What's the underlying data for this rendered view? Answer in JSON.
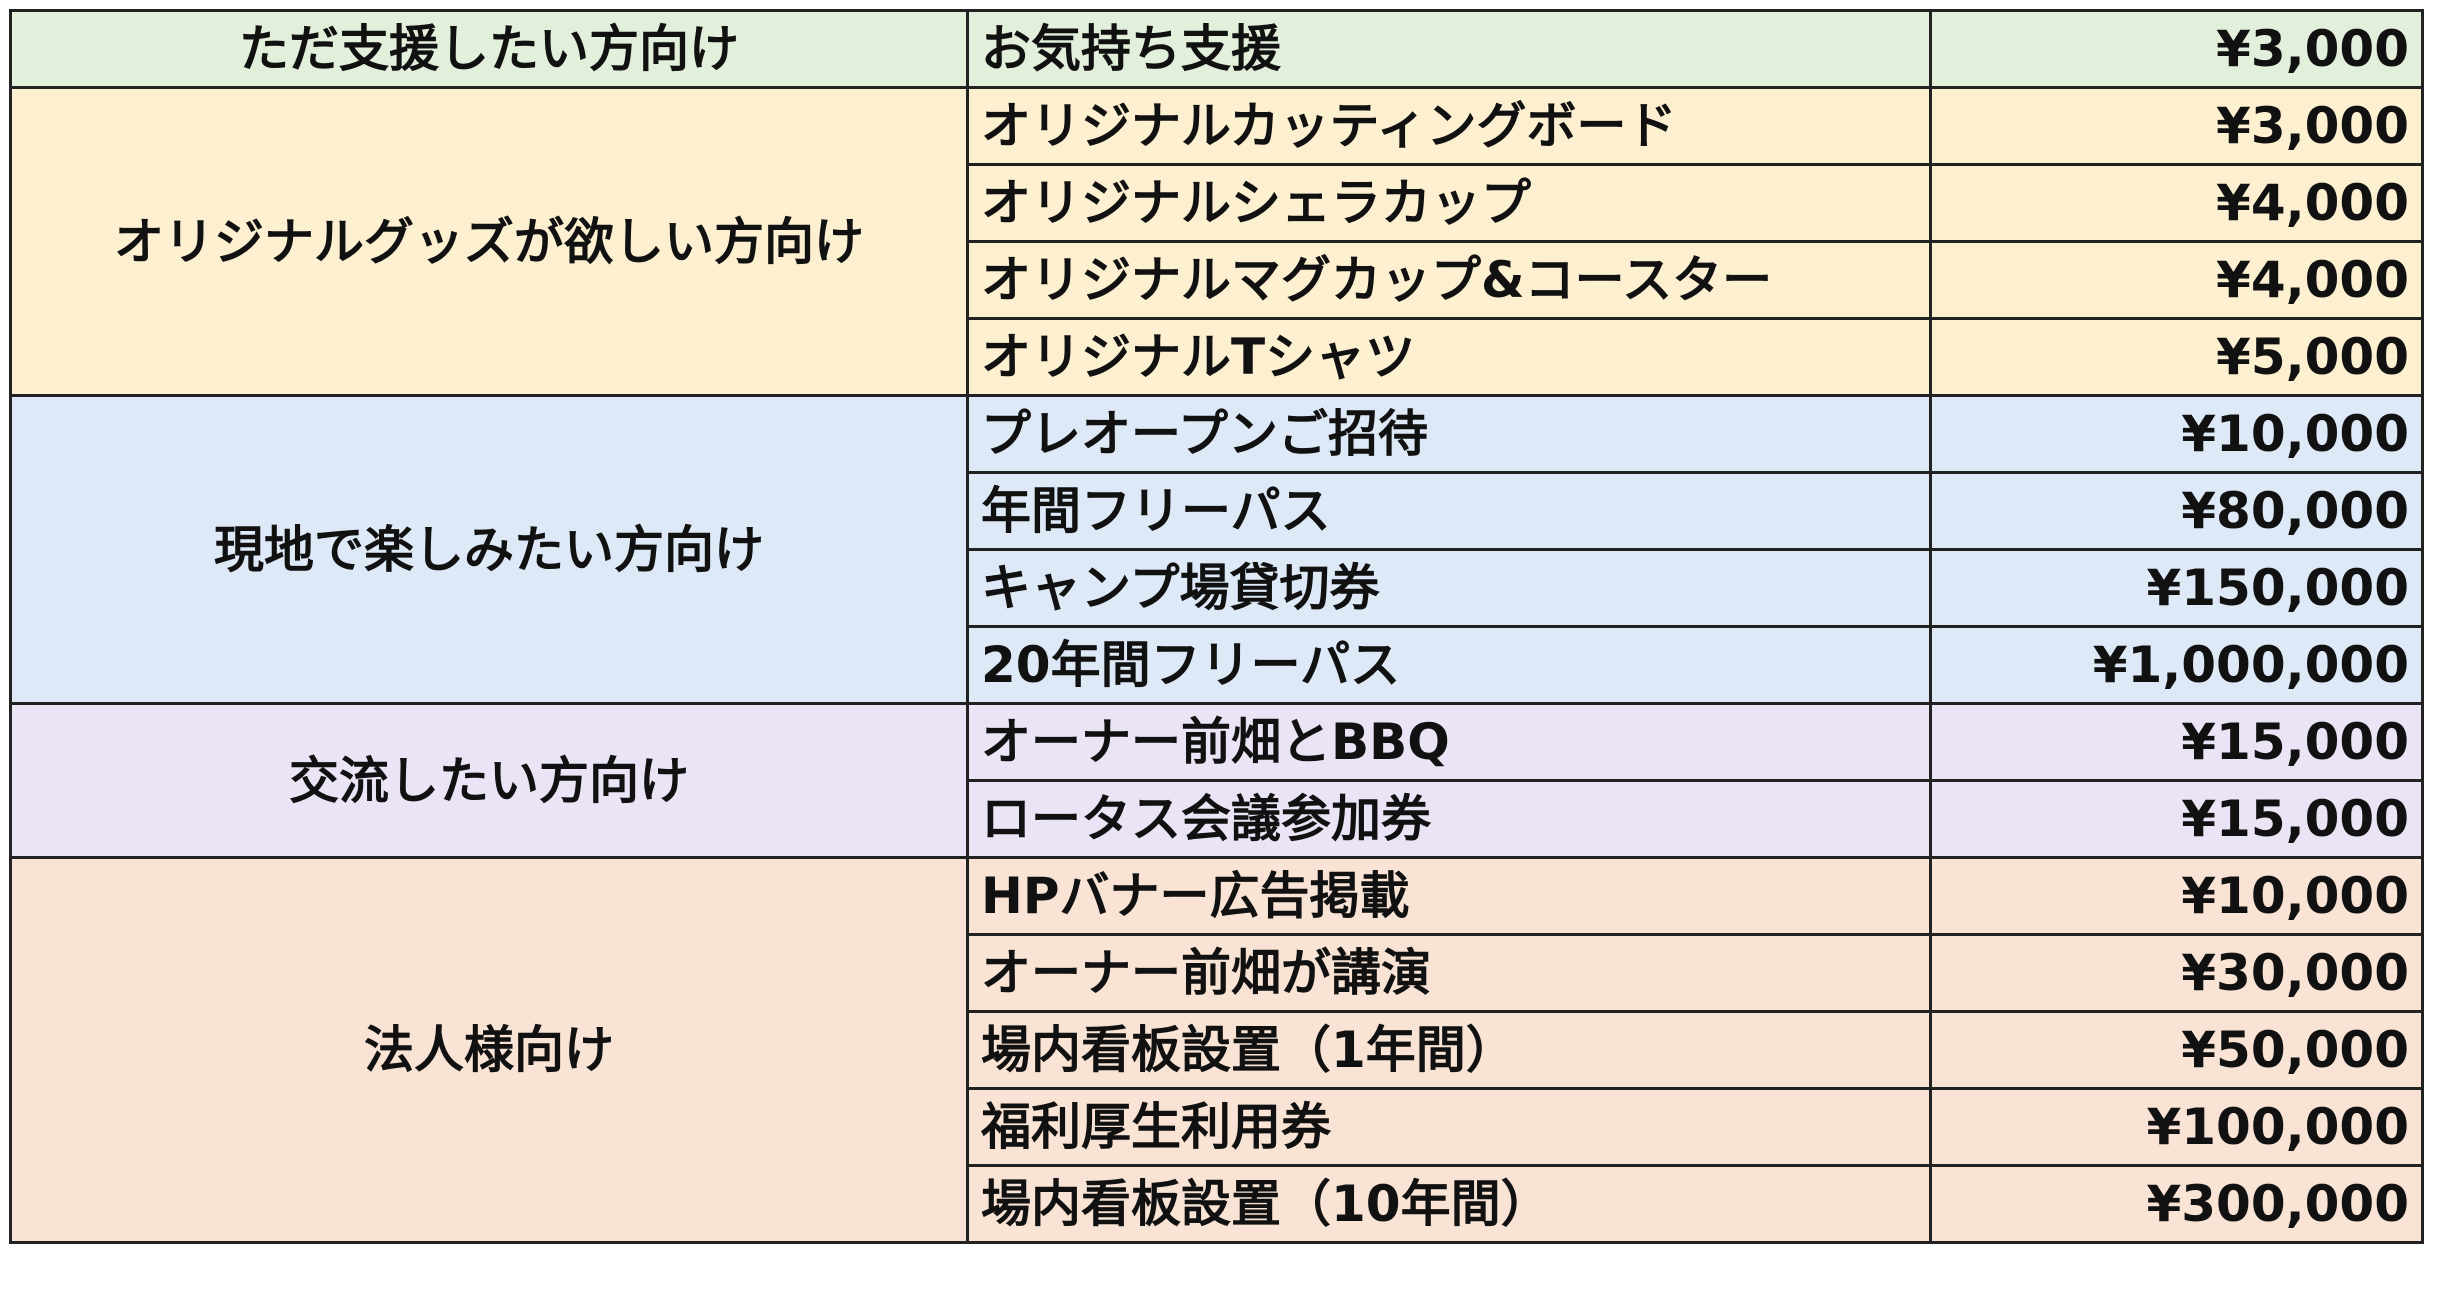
{
  "groups": [
    {
      "category": "ただ支援したい方向け",
      "color": "#e2efda",
      "items": [
        {
          "name": "お気持ち支援",
          "price": "¥3,000"
        }
      ]
    },
    {
      "category": "オリジナルグッズが欲しい方向け",
      "color": "#fdf0d1",
      "items": [
        {
          "name": "オリジナルカッティングボード",
          "price": "¥3,000"
        },
        {
          "name": "オリジナルシェラカップ",
          "price": "¥4,000"
        },
        {
          "name": "オリジナルマグカップ&コースター",
          "price": "¥4,000"
        },
        {
          "name": "オリジナルTシャツ",
          "price": "¥5,000"
        }
      ]
    },
    {
      "category": "現地で楽しみたい方向け",
      "color": "#dde9f6",
      "items": [
        {
          "name": "プレオープンご招待",
          "price": "¥10,000"
        },
        {
          "name": "年間フリーパス",
          "price": "¥80,000"
        },
        {
          "name": "キャンプ場貸切券",
          "price": "¥150,000"
        },
        {
          "name": "20年間フリーパス",
          "price": "¥1,000,000"
        }
      ]
    },
    {
      "category": "交流したい方向け",
      "color": "#ebe3f6",
      "items": [
        {
          "name": "オーナー前畑とBBQ",
          "price": "¥15,000"
        },
        {
          "name": "ロータス会議参加券",
          "price": "¥15,000"
        }
      ]
    },
    {
      "category": "法人様向け",
      "color": "#f8e3d5",
      "items": [
        {
          "name": "HPバナー広告掲載",
          "price": "¥10,000"
        },
        {
          "name": "オーナー前畑が講演",
          "price": "¥30,000"
        },
        {
          "name": "場内看板設置（1年間）",
          "price": "¥50,000"
        },
        {
          "name": "福利厚生利用券",
          "price": "¥100,000"
        },
        {
          "name": "場内看板設置（10年間）",
          "price": "¥300,000"
        }
      ]
    }
  ]
}
